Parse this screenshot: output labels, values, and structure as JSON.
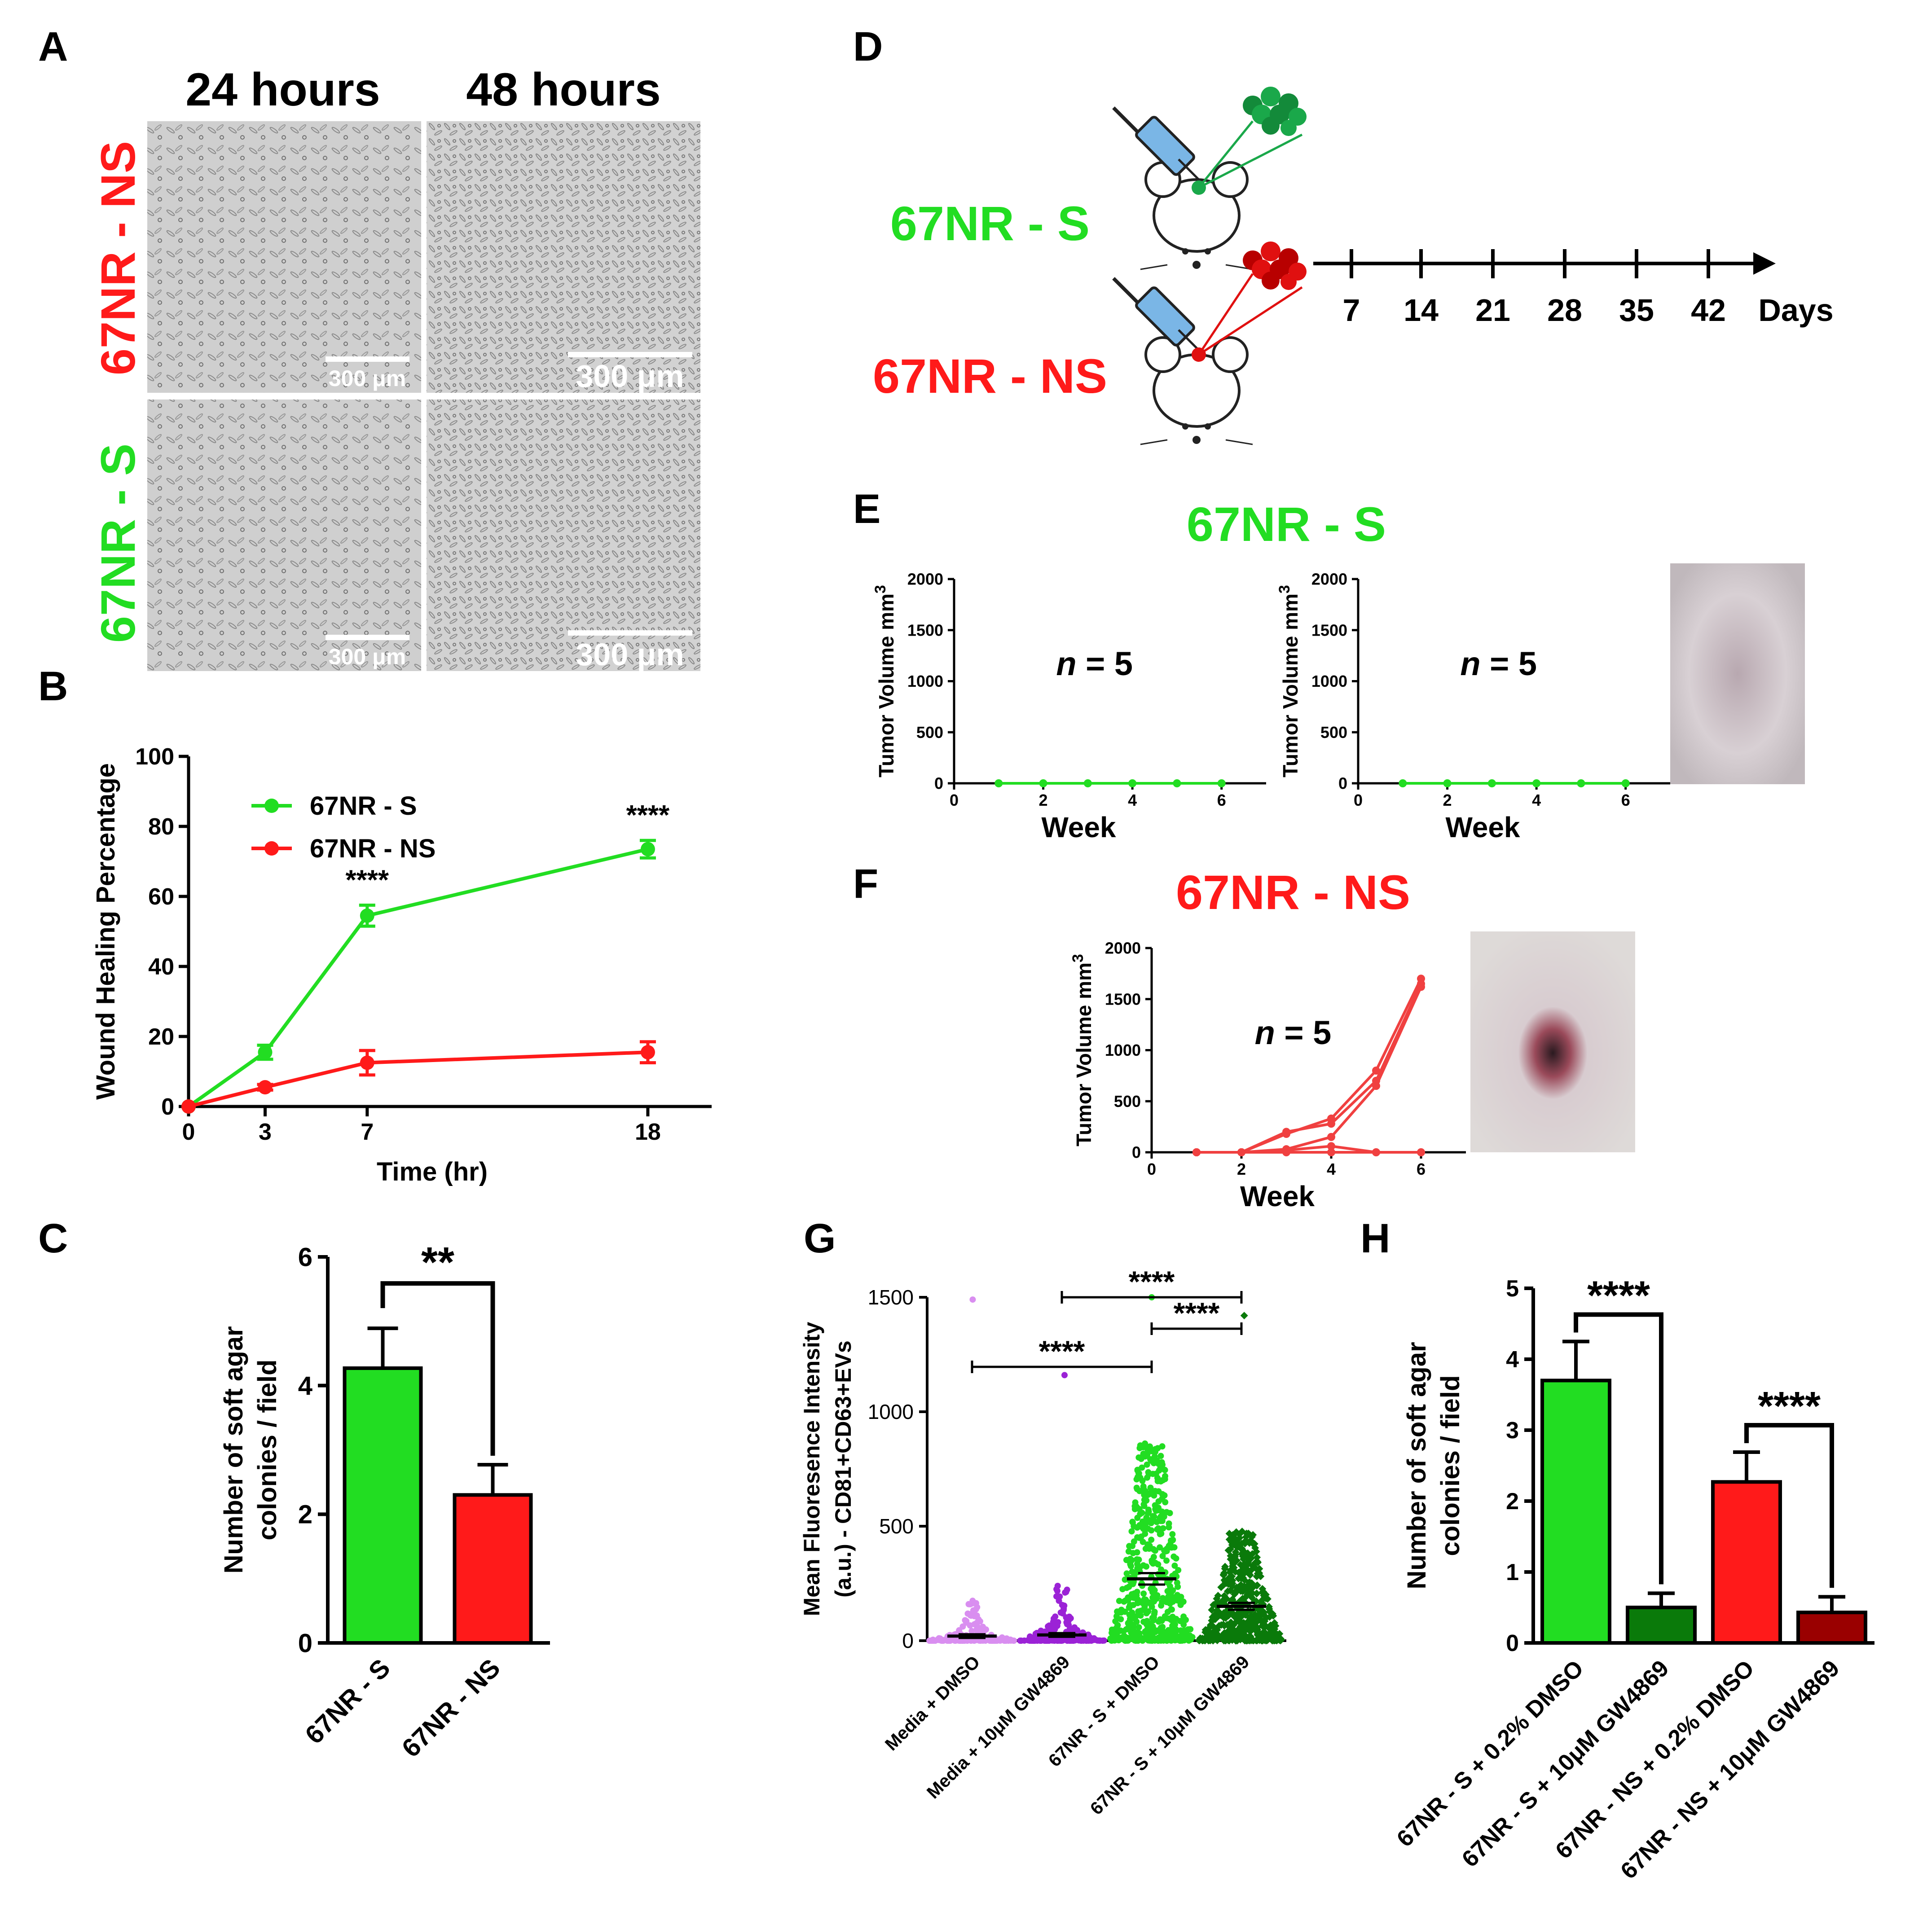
{
  "colors": {
    "green": "#22dd22",
    "red": "#ff1a1a",
    "darkgreen": "#0a7a0a",
    "darkred": "#9a0000",
    "violet": "#d98ef0",
    "purple": "#9b22d6",
    "black": "#000000"
  },
  "panel_a": {
    "letter": "A",
    "col_labels": [
      "24 hours",
      "48 hours"
    ],
    "row_labels": [
      "67NR - NS",
      "67NR - S"
    ],
    "scale_bar": "300 μm",
    "images": [
      {
        "description_icon": "micrograph-icon"
      },
      {
        "description_icon": "micrograph-icon"
      },
      {
        "description_icon": "micrograph-icon"
      },
      {
        "description_icon": "micrograph-icon"
      }
    ]
  },
  "panel_d": {
    "letter": "D",
    "group_s": "67NR - S",
    "group_ns": "67NR - NS",
    "timeline_ticks": [
      "7",
      "14",
      "21",
      "28",
      "35",
      "42"
    ],
    "timeline_unit": "Days"
  },
  "panel_e": {
    "letter": "E",
    "title": "67NR - S"
  },
  "panel_f": {
    "letter": "F",
    "title": "67NR - NS"
  },
  "chart_data": [
    {
      "id": "B",
      "type": "line",
      "letter": "B",
      "xlabel": "Time (hr)",
      "ylabel": "Wound Healing Percentage",
      "x_ticks": [
        "0",
        "3",
        "7",
        "18"
      ],
      "y_ticks": [
        "0",
        "20",
        "40",
        "60",
        "80",
        "100"
      ],
      "ylim": [
        0,
        100
      ],
      "series": [
        {
          "name": "67NR - S",
          "color": "#22dd22",
          "x": [
            0,
            3,
            7,
            18
          ],
          "y": [
            0,
            15.5,
            54.5,
            73.5
          ],
          "err": [
            0,
            2,
            3,
            2.5
          ]
        },
        {
          "name": "67NR - NS",
          "color": "#ff1a1a",
          "x": [
            0,
            3,
            7,
            18
          ],
          "y": [
            0,
            5.5,
            12.5,
            15.5
          ],
          "err": [
            0,
            0.8,
            3.5,
            3
          ]
        }
      ],
      "annotations": [
        {
          "x": 7,
          "text": "****"
        },
        {
          "x": 18,
          "text": "****"
        }
      ],
      "legend": "top-left"
    },
    {
      "id": "C",
      "type": "bar",
      "letter": "C",
      "ylabel_lines": [
        "Number of soft agar",
        "colonies / field"
      ],
      "categories": [
        "67NR - S",
        "67NR - NS"
      ],
      "values": [
        4.27,
        2.3
      ],
      "err": [
        0.62,
        0.47
      ],
      "bar_colors": [
        "#22dd22",
        "#ff1a1a"
      ],
      "y_ticks": [
        "0",
        "2",
        "4",
        "6"
      ],
      "ylim": [
        0,
        6
      ],
      "significance": [
        {
          "from": 0,
          "to": 1,
          "text": "**"
        }
      ]
    },
    {
      "id": "E1",
      "type": "line",
      "ylabel": "Tumor Volume mm",
      "ylabel_sup": "3",
      "xlabel": "Week",
      "x_ticks": [
        "0",
        "2",
        "4",
        "6"
      ],
      "y_ticks": [
        "0",
        "500",
        "1000",
        "1500",
        "2000"
      ],
      "ylim": [
        0,
        2000
      ],
      "xlim": [
        0,
        7
      ],
      "annotation": "n = 5",
      "series": [
        {
          "color": "#22dd22",
          "x": [
            1,
            2,
            3,
            4,
            5,
            6
          ],
          "y": [
            0,
            0,
            0,
            0,
            0,
            0
          ]
        }
      ]
    },
    {
      "id": "E2",
      "type": "line",
      "ylabel": "Tumor Volume mm",
      "ylabel_sup": "3",
      "xlabel": "Week",
      "x_ticks": [
        "0",
        "2",
        "4",
        "6"
      ],
      "y_ticks": [
        "0",
        "500",
        "1000",
        "1500",
        "2000"
      ],
      "ylim": [
        0,
        2000
      ],
      "xlim": [
        0,
        7
      ],
      "annotation": "n = 5",
      "series": [
        {
          "color": "#22dd22",
          "x": [
            1,
            2,
            3,
            4,
            5,
            6
          ],
          "y": [
            0,
            0,
            0,
            0,
            0,
            0
          ]
        }
      ]
    },
    {
      "id": "F",
      "type": "line",
      "ylabel": "Tumor Volume mm",
      "ylabel_sup": "3",
      "xlabel": "Week",
      "x_ticks": [
        "0",
        "2",
        "4",
        "6"
      ],
      "y_ticks": [
        "0",
        "500",
        "1000",
        "1500",
        "2000"
      ],
      "ylim": [
        0,
        2000
      ],
      "xlim": [
        0,
        7
      ],
      "annotation": "n = 5",
      "series": [
        {
          "color": "#f04040",
          "x": [
            1,
            2,
            3,
            4,
            5,
            6
          ],
          "y": [
            0,
            0,
            180,
            330,
            800,
            1700
          ]
        },
        {
          "color": "#f04040",
          "x": [
            1,
            2,
            3,
            4,
            5,
            6
          ],
          "y": [
            0,
            0,
            200,
            280,
            700,
            1650
          ]
        },
        {
          "color": "#f04040",
          "x": [
            1,
            2,
            3,
            4,
            5,
            6
          ],
          "y": [
            0,
            0,
            30,
            150,
            650,
            1620
          ]
        },
        {
          "color": "#f04040",
          "x": [
            1,
            2,
            3,
            4,
            5,
            6
          ],
          "y": [
            0,
            0,
            20,
            60,
            0,
            0
          ]
        },
        {
          "color": "#f04040",
          "x": [
            1,
            2,
            3,
            4,
            5,
            6
          ],
          "y": [
            0,
            0,
            0,
            0,
            0,
            0
          ]
        }
      ]
    },
    {
      "id": "G",
      "type": "scatter",
      "letter": "G",
      "ylabel_lines": [
        "Mean Fluoresence Intensity",
        "(a.u.) - CD81+CD63+EVs"
      ],
      "categories": [
        "Media + DMSO",
        "Media + 10μM GW4869",
        "67NR - S + DMSO",
        "67NR - S + 10μM GW4869"
      ],
      "colors": [
        "#d98ef0",
        "#9b22d6",
        "#22dd22",
        "#0a7a0a"
      ],
      "means": [
        20,
        25,
        270,
        150
      ],
      "sem": [
        8,
        8,
        25,
        15
      ],
      "max_values": [
        1490,
        1160,
        1500,
        1420
      ],
      "y_ticks": [
        "0",
        "500",
        "1000",
        "1500"
      ],
      "ylim": [
        0,
        1500
      ],
      "significance": [
        {
          "from": 0,
          "to": 2,
          "text": "****"
        },
        {
          "from": 1,
          "to": 3,
          "text": "****"
        },
        {
          "from": 2,
          "to": 3,
          "text": "****"
        }
      ]
    },
    {
      "id": "H",
      "type": "bar",
      "letter": "H",
      "ylabel_lines": [
        "Number of soft agar",
        "colonies / field"
      ],
      "categories": [
        "67NR - S + 0.2% DMSO",
        "67NR - S + 10μM GW4869",
        "67NR - NS + 0.2% DMSO",
        "67NR - NS + 10μM GW4869"
      ],
      "values": [
        3.7,
        0.5,
        2.27,
        0.43
      ],
      "err": [
        0.55,
        0.2,
        0.42,
        0.22
      ],
      "bar_colors": [
        "#22dd22",
        "#0a7a0a",
        "#ff1a1a",
        "#9a0000"
      ],
      "y_ticks": [
        "0",
        "1",
        "2",
        "3",
        "4",
        "5"
      ],
      "ylim": [
        0,
        5
      ],
      "significance": [
        {
          "from": 0,
          "to": 1,
          "text": "****"
        },
        {
          "from": 2,
          "to": 3,
          "text": "****"
        }
      ]
    }
  ]
}
